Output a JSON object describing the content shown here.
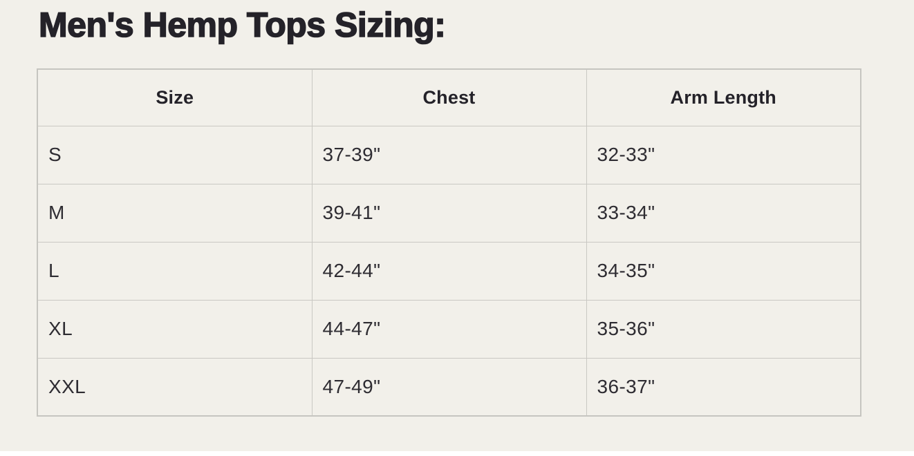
{
  "title": "Men's Hemp Tops Sizing:",
  "table": {
    "columns": [
      "Size",
      "Chest",
      "Arm Length"
    ],
    "rows": [
      {
        "size": "S",
        "chest": "37-39\"",
        "arm_length": "32-33\""
      },
      {
        "size": "M",
        "chest": "39-41\"",
        "arm_length": "33-34\""
      },
      {
        "size": "L",
        "chest": "42-44\"",
        "arm_length": "34-35\""
      },
      {
        "size": "XL",
        "chest": "44-47\"",
        "arm_length": "35-36\""
      },
      {
        "size": "XXL",
        "chest": "47-49\"",
        "arm_length": "36-37\""
      }
    ]
  },
  "colors": {
    "background": "#f2f0ea",
    "text": "#28262c",
    "border": "#c9c8c3"
  }
}
